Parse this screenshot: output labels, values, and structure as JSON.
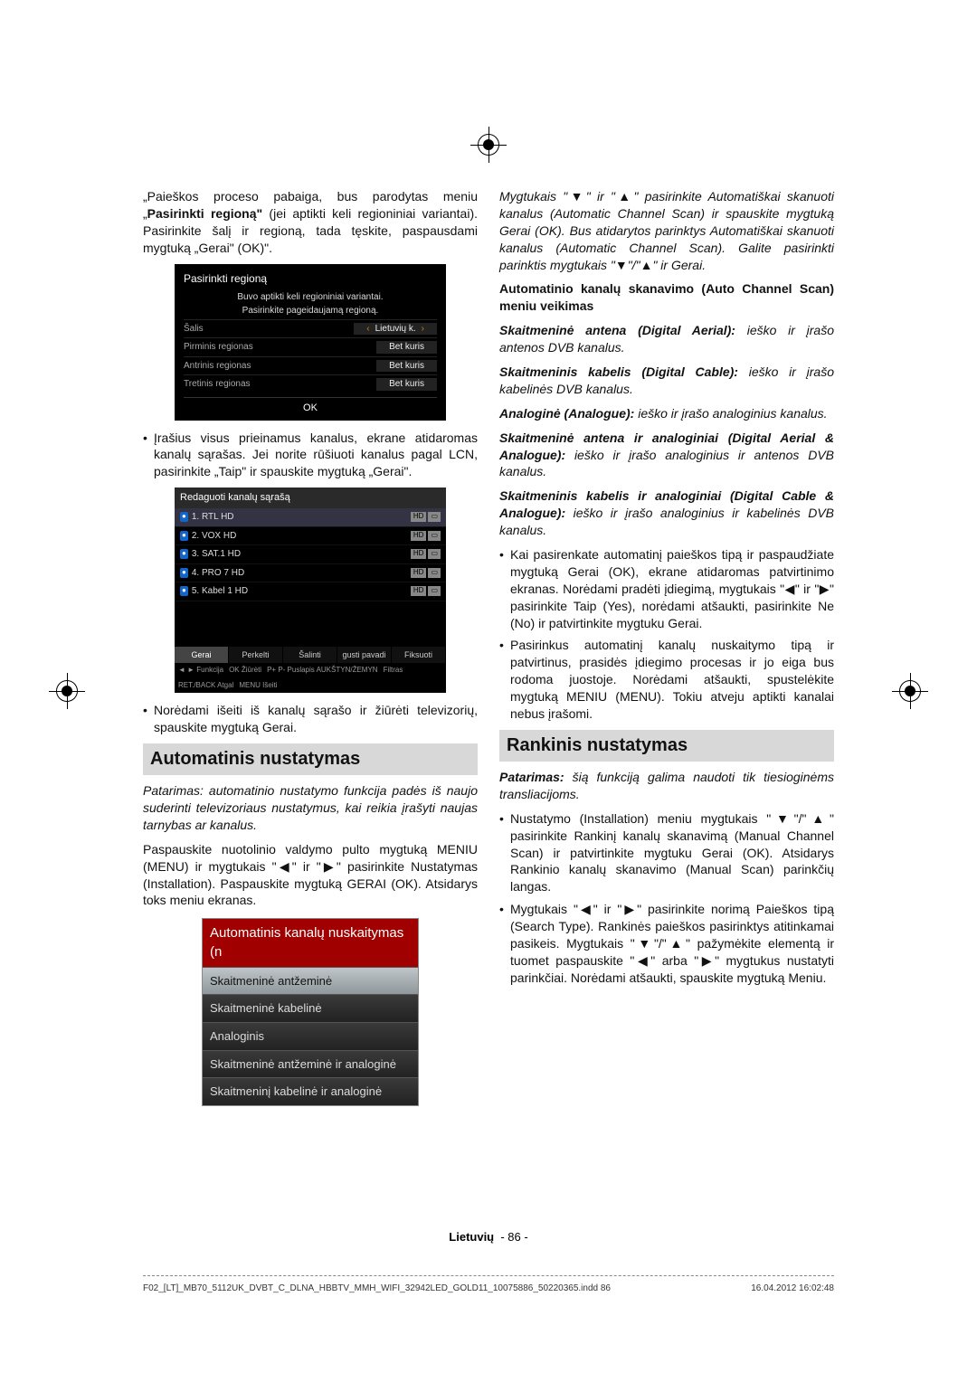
{
  "intro": {
    "p1_prefix": "„Paieškos proceso pabaiga, bus parodytas meniu „",
    "p1_bold": "Pasirinkti regioną\"",
    "p1_suffix": " (jei aptikti keli regioniniai variantai). Pasirinkite šalį ir regioną, tada tęskite, paspausdami mygtuką „Gerai\" (OK)\"."
  },
  "region_dialog": {
    "title": "Pasirinkti regioną",
    "line1": "Buvo aptikti keli regioniniai variantai.",
    "line2": "Pasirinkite pageidaujamą regioną.",
    "rows": [
      {
        "label": "Šalis",
        "value": "Lietuvių k."
      },
      {
        "label": "Pirminis regionas",
        "value": "Bet kuris"
      },
      {
        "label": "Antrinis regionas",
        "value": "Bet kuris"
      },
      {
        "label": "Tretinis regionas",
        "value": "Bet kuris"
      }
    ],
    "ok": "OK"
  },
  "bullet_after_region": "Įrašius visus prieinamus kanalus, ekrane atidaromas kanalų sąrašas. Jei norite rūšiuoti kanalus pagal LCN, pasirinkite „Taip\" ir spauskite mygtuką „Gerai\".",
  "chan_dialog": {
    "title": "Redaguoti kanalų sąrašą",
    "rows": [
      {
        "n": "1",
        "name": "1. RTL HD"
      },
      {
        "n": "2",
        "name": "2. VOX HD"
      },
      {
        "n": "3",
        "name": "3. SAT.1 HD"
      },
      {
        "n": "4",
        "name": "4. PRO 7 HD"
      },
      {
        "n": "5",
        "name": "5. Kabel 1 HD"
      }
    ],
    "btns": [
      "Gerai",
      "Perkelti",
      "Šalinti",
      "gusti pavadi",
      "Fiksuoti"
    ],
    "foot": [
      "◄ ► Funkcija",
      "OK Žiūrėti",
      "P+ P- Puslapis AUKŠTYN/ŽEMYN",
      "Filtras",
      "RET./BACK Atgal",
      "MENU Išeiti"
    ]
  },
  "bullet_after_chan": "Norėdami išeiti iš kanalų sąrašo ir žiūrėti televizorių, spauskite mygtuką Gerai.",
  "auto": {
    "heading": "Automatinis nustatymas",
    "tip": "Patarimas: automatinio nustatymo funkcija padės iš naujo suderinti televizoriaus nustatymus, kai reikia įrašyti naujas tarnybas ar kanalus.",
    "p1": "Paspauskite nuotolinio valdymo pulto mygtuką MENIU (MENU) ir mygtukais \"◀\" ir \"▶\" pasirinkite Nustatymas (Installation). Paspauskite mygtuką GERAI (OK). Atsidarys toks meniu ekranas."
  },
  "menu": {
    "title": "Automatinis kanalų nuskaitymas (n",
    "items": [
      "Skaitmeninė antžeminė",
      "Skaitmeninė kabelinė",
      "Analoginis",
      "Skaitmeninė antžeminė ir analoginė",
      "Skaitmeninį kabelinė ir analoginė"
    ]
  },
  "right": {
    "p1": "Mygtukais \"▼\" ir \"▲\" pasirinkite Automatiškai skanuoti kanalus (Automatic Channel Scan) ir spauskite mygtuką Gerai (OK). Bus atidarytos parinktys Automatiškai skanuoti kanalus (Automatic Channel Scan). Galite pasirinkti parinktis mygtukais \"▼\"/\"▲\" ir Gerai.",
    "subhead": "Automatinio kanalų skanavimo (Auto Channel Scan) meniu veikimas",
    "items": [
      {
        "b": "Skaitmeninė antena (Digital Aerial):",
        "t": " ieško ir įrašo antenos DVB kanalus."
      },
      {
        "b": "Skaitmeninis kabelis (Digital Cable):",
        "t": " ieško ir įrašo kabelinės DVB kanalus."
      },
      {
        "b": "Analoginė (Analogue):",
        "t": " ieško ir įrašo analoginius kanalus."
      },
      {
        "b": "Skaitmeninė antena ir analoginiai (Digital Aerial & Analogue):",
        "t": " ieško ir įrašo analoginius ir antenos DVB kanalus."
      },
      {
        "b": "Skaitmeninis kabelis ir analoginiai (Digital Cable & Analogue):",
        "t": " ieško ir įrašo analoginius ir kabelinės DVB kanalus."
      }
    ],
    "bul1": "Kai pasirenkate automatinį paieškos tipą ir paspaudžiate mygtuką Gerai (OK), ekrane atidaromas patvirtinimo ekranas. Norėdami pradėti įdiegimą, mygtukais \"◀\" ir \"▶\" pasirinkite Taip (Yes), norėdami atšaukti, pasirinkite Ne (No) ir patvirtinkite mygtuku Gerai.",
    "bul2": "Pasirinkus automatinį kanalų nuskaitymo tipą ir patvirtinus, prasidės įdiegimo procesas ir jo eiga bus rodoma juostoje. Norėdami atšaukti, spustelėkite mygtuką MENIU (MENU). Tokiu atveju aptikti kanalai nebus įrašomi.",
    "manual_head": "Rankinis nustatymas",
    "manual_tip_b": "Patarimas:",
    "manual_tip": " šią funkciją galima naudoti tik tiesioginėms transliacijoms.",
    "mbul1": "Nustatymo (Installation) meniu mygtukais \"▼\"/\"▲\" pasirinkite Rankinį kanalų skanavimą (Manual Channel Scan) ir patvirtinkite mygtuku Gerai (OK). Atsidarys Rankinio kanalų skanavimo (Manual Scan) parinkčių langas.",
    "mbul2": "Mygtukais \"◀\" ir \"▶\" pasirinkite norimą Paieškos tipą (Search Type). Rankinės paieškos pasirinktys atitinkamai pasikeis. Mygtukais \"▼\"/\"▲\" pažymėkite elementą ir tuomet paspauskite \"◀\" arba \"▶\" mygtukus nustatyti parinkčiai. Norėdami atšaukti, spauskite mygtuką Meniu."
  },
  "footer": {
    "lang": "Lietuvių",
    "page": "- 86 -"
  },
  "meta": {
    "file": "F02_[LT]_MB70_5112UK_DVBT_C_DLNA_HBBTV_MMH_WIFI_32942LED_GOLD11_10075886_50220365.indd   86",
    "date": "16.04.2012   16:02:48"
  },
  "colors": {
    "accent": "#a00000",
    "highlight": "#d8d8d8"
  }
}
